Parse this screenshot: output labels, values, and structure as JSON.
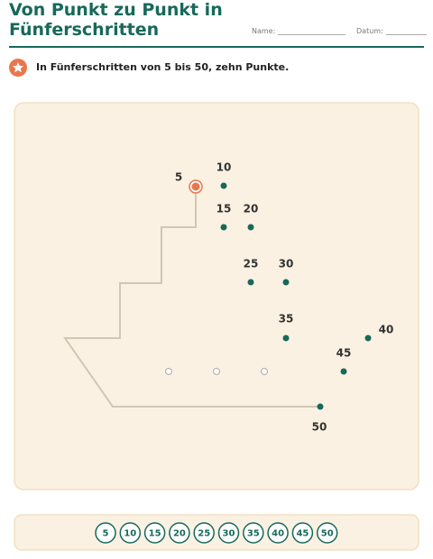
{
  "header": {
    "title": "Von Punkt zu Punkt in Fünferschritten",
    "name_label": "Name:",
    "date_label": "Datum:"
  },
  "instruction": "In Fünferschritten von 5 bis 50, zehn Punkte.",
  "dots": [
    5,
    10,
    15,
    20,
    25,
    30,
    35,
    40,
    45,
    50
  ],
  "number_strip": [
    5,
    10,
    15,
    20,
    25,
    30,
    35,
    40,
    45,
    50
  ]
}
